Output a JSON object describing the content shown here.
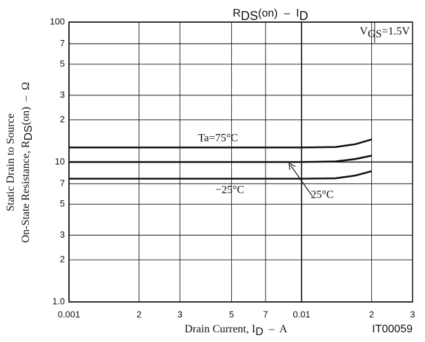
{
  "chart_data": {
    "type": "line",
    "title": [
      "R",
      "DS",
      "(on)  –  I",
      "D"
    ],
    "x_label": [
      "Drain Current, I",
      "D",
      "  –  A"
    ],
    "y_label": [
      [
        "Static Drain to Source"
      ],
      [
        "On-State Resistance, R",
        "DS",
        "(on)  –  Ω"
      ]
    ],
    "condition": [
      "V",
      "GS",
      "=1.5V"
    ],
    "figure_id": "IT00059",
    "xscale": "log",
    "yscale": "log",
    "grid": true,
    "xlim": [
      0.001,
      0.03
    ],
    "xticks": [
      0.001,
      {
        "value": 0.002,
        "label": "2"
      },
      {
        "value": 0.003,
        "label": "3"
      },
      {
        "value": 0.005,
        "label": "5"
      },
      {
        "value": 0.007,
        "label": "7"
      },
      0.01,
      {
        "value": 0.02,
        "label": "2"
      },
      {
        "value": 0.03,
        "label": "3"
      }
    ],
    "ylim": [
      1,
      100
    ],
    "yticks": [
      {
        "value": 1,
        "label": "1.0"
      },
      2,
      3,
      5,
      7,
      10,
      {
        "value": 20,
        "label": "2"
      },
      {
        "value": 30,
        "label": "3"
      },
      {
        "value": 50,
        "label": "5"
      },
      {
        "value": 70,
        "label": "7"
      },
      100
    ],
    "x": [
      0.001,
      0.003,
      0.01,
      0.014,
      0.017,
      0.02
    ],
    "series": [
      {
        "name": "Ta=75°C",
        "color": "#111111",
        "values": [
          12.7,
          12.7,
          12.7,
          12.8,
          13.4,
          14.5
        ]
      },
      {
        "name": "25°C",
        "color": "#111111",
        "values": [
          10,
          10,
          10,
          10.1,
          10.5,
          11.1
        ]
      },
      {
        "name": "−25°C",
        "color": "#111111",
        "values": [
          7.6,
          7.6,
          7.6,
          7.65,
          8.0,
          8.6
        ]
      }
    ]
  }
}
